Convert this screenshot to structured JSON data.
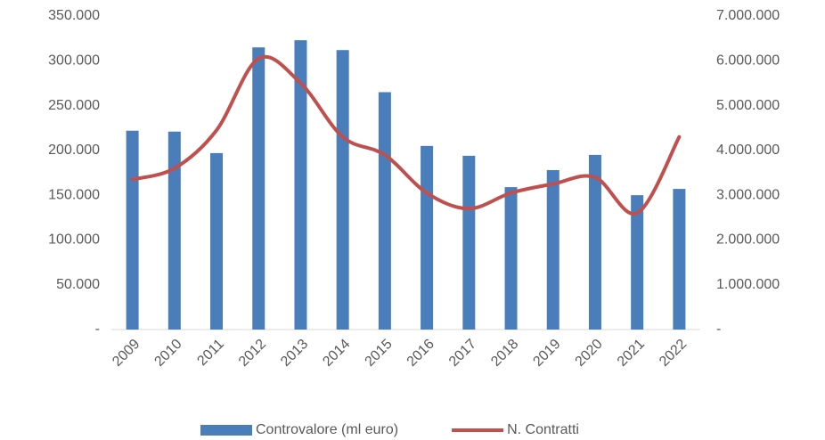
{
  "chart_data": {
    "type": "bar-line",
    "categories": [
      "2009",
      "2010",
      "2011",
      "2012",
      "2013",
      "2014",
      "2015",
      "2016",
      "2017",
      "2018",
      "2019",
      "2020",
      "2021",
      "2022"
    ],
    "series": [
      {
        "name": "Controvalore (ml euro)",
        "color": "#4a7ebb",
        "type": "bar",
        "axis": "y",
        "values": [
          222000,
          221000,
          197000,
          315000,
          323000,
          312000,
          265000,
          205000,
          194000,
          159000,
          178000,
          195000,
          150000,
          157000
        ]
      },
      {
        "name": "N. Contratti",
        "color": "#c0504d",
        "type": "line",
        "axis": "y2",
        "values": [
          3350000,
          3600000,
          4450000,
          6050000,
          5500000,
          4300000,
          3900000,
          3050000,
          2700000,
          3050000,
          3250000,
          3400000,
          2600000,
          4300000
        ]
      }
    ],
    "ylim": [
      0,
      350000
    ],
    "yticks": [
      {
        "value": 0,
        "label": "-"
      },
      {
        "value": 50000,
        "label": "50.000"
      },
      {
        "value": 100000,
        "label": "100.000"
      },
      {
        "value": 150000,
        "label": "150.000"
      },
      {
        "value": 200000,
        "label": "200.000"
      },
      {
        "value": 250000,
        "label": "250.000"
      },
      {
        "value": 300000,
        "label": "300.000"
      },
      {
        "value": 350000,
        "label": "350.000"
      }
    ],
    "y2lim": [
      0,
      7000000
    ],
    "y2ticks": [
      {
        "value": 0,
        "label": "-"
      },
      {
        "value": 1000000,
        "label": "1.000.000"
      },
      {
        "value": 2000000,
        "label": "2.000.000"
      },
      {
        "value": 3000000,
        "label": "3.000.000"
      },
      {
        "value": 4000000,
        "label": "4.000.000"
      },
      {
        "value": 5000000,
        "label": "5.000.000"
      },
      {
        "value": 6000000,
        "label": "6.000.000"
      },
      {
        "value": 7000000,
        "label": "7.000.000"
      }
    ],
    "legend": "bottom"
  }
}
